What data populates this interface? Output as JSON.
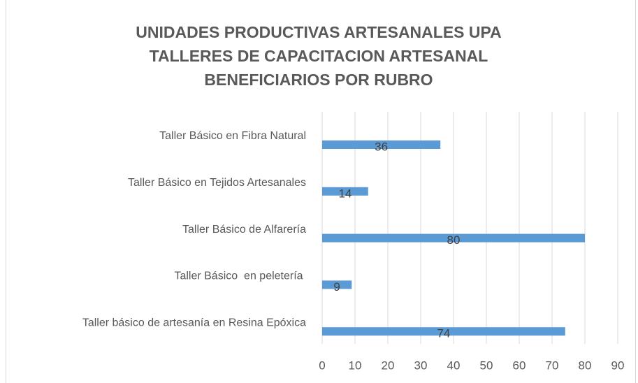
{
  "chart_data": {
    "type": "barh",
    "title": [
      "UNIDADES PRODUCTIVAS ARTESANALES UPA",
      "TALLERES DE CAPACITACION ARTESANAL",
      "BENEFICIARIOS POR RUBRO"
    ],
    "categories": [
      "Taller Básico en Fibra Natural",
      "Taller Básico en Tejidos Artesanales",
      "Taller Básico de Alfarería",
      "Taller Básico  en peletería ",
      "Taller básico de artesanía en Resina Epóxica"
    ],
    "values": [
      36,
      14,
      80,
      9,
      74
    ],
    "color": "#5b9bd5",
    "xlim": [
      0,
      90
    ],
    "xticks": [
      0,
      10,
      20,
      30,
      40,
      50,
      60,
      70,
      80,
      90
    ],
    "grid": true
  }
}
